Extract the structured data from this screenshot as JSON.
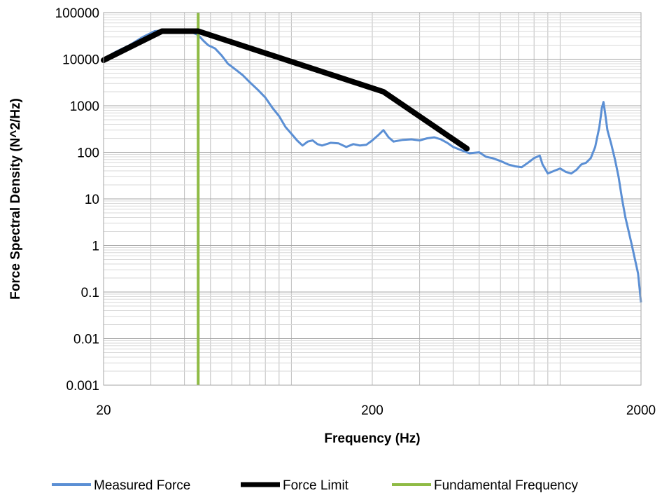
{
  "chart_data": {
    "type": "line",
    "title": "",
    "xlabel": "Frequency (Hz)",
    "ylabel": "Force Spectral Density  (N^2/Hz)",
    "x_scale": "log",
    "y_scale": "log",
    "xlim": [
      20,
      2000
    ],
    "ylim": [
      0.001,
      100000
    ],
    "x_ticks": [
      20,
      200,
      2000
    ],
    "x_tick_labels": [
      "20",
      "200",
      "2000"
    ],
    "y_ticks": [
      0.001,
      0.01,
      0.1,
      1,
      10,
      100,
      1000,
      10000,
      100000
    ],
    "y_tick_labels": [
      "0.001",
      "0.01",
      "0.1",
      "1",
      "10",
      "100",
      "1000",
      "10000",
      "100000"
    ],
    "grid": true,
    "legend_position": "bottom",
    "series": [
      {
        "name": "Measured Force",
        "color": "#5B8FD4",
        "points": [
          [
            20,
            10000
          ],
          [
            22,
            14000
          ],
          [
            25,
            20000
          ],
          [
            28,
            30000
          ],
          [
            31,
            40000
          ],
          [
            34,
            42000
          ],
          [
            37,
            41000
          ],
          [
            40,
            39000
          ],
          [
            43,
            37000
          ],
          [
            45,
            33000
          ],
          [
            47,
            25000
          ],
          [
            49,
            20000
          ],
          [
            52,
            17000
          ],
          [
            55,
            12000
          ],
          [
            58,
            8000
          ],
          [
            62,
            6000
          ],
          [
            66,
            4500
          ],
          [
            70,
            3200
          ],
          [
            75,
            2200
          ],
          [
            80,
            1500
          ],
          [
            85,
            900
          ],
          [
            90,
            600
          ],
          [
            95,
            350
          ],
          [
            100,
            250
          ],
          [
            105,
            180
          ],
          [
            110,
            140
          ],
          [
            115,
            170
          ],
          [
            120,
            180
          ],
          [
            125,
            150
          ],
          [
            130,
            140
          ],
          [
            140,
            160
          ],
          [
            150,
            155
          ],
          [
            160,
            130
          ],
          [
            170,
            150
          ],
          [
            180,
            140
          ],
          [
            190,
            145
          ],
          [
            200,
            180
          ],
          [
            210,
            230
          ],
          [
            220,
            300
          ],
          [
            230,
            210
          ],
          [
            240,
            170
          ],
          [
            260,
            185
          ],
          [
            280,
            190
          ],
          [
            300,
            180
          ],
          [
            320,
            200
          ],
          [
            340,
            210
          ],
          [
            360,
            190
          ],
          [
            380,
            160
          ],
          [
            400,
            130
          ],
          [
            430,
            110
          ],
          [
            460,
            95
          ],
          [
            500,
            100
          ],
          [
            530,
            80
          ],
          [
            560,
            75
          ],
          [
            600,
            65
          ],
          [
            640,
            55
          ],
          [
            680,
            50
          ],
          [
            720,
            48
          ],
          [
            760,
            60
          ],
          [
            800,
            75
          ],
          [
            840,
            85
          ],
          [
            860,
            55
          ],
          [
            900,
            35
          ],
          [
            950,
            40
          ],
          [
            1000,
            45
          ],
          [
            1050,
            38
          ],
          [
            1100,
            35
          ],
          [
            1150,
            42
          ],
          [
            1200,
            55
          ],
          [
            1250,
            60
          ],
          [
            1300,
            75
          ],
          [
            1350,
            130
          ],
          [
            1400,
            350
          ],
          [
            1430,
            900
          ],
          [
            1450,
            1200
          ],
          [
            1470,
            700
          ],
          [
            1500,
            300
          ],
          [
            1550,
            150
          ],
          [
            1600,
            70
          ],
          [
            1650,
            30
          ],
          [
            1700,
            10
          ],
          [
            1750,
            4
          ],
          [
            1800,
            2
          ],
          [
            1850,
            1
          ],
          [
            1900,
            0.5
          ],
          [
            1950,
            0.25
          ],
          [
            2000,
            0.06
          ]
        ]
      },
      {
        "name": "Force Limit",
        "color": "#000000",
        "points": [
          [
            20,
            9500
          ],
          [
            33,
            40000
          ],
          [
            45,
            40000
          ],
          [
            220,
            2000
          ],
          [
            450,
            120
          ]
        ]
      },
      {
        "name": "Fundamental Frequency",
        "color": "#8FBB45",
        "points": [
          [
            45,
            0.001
          ],
          [
            45,
            100000
          ]
        ]
      }
    ]
  }
}
